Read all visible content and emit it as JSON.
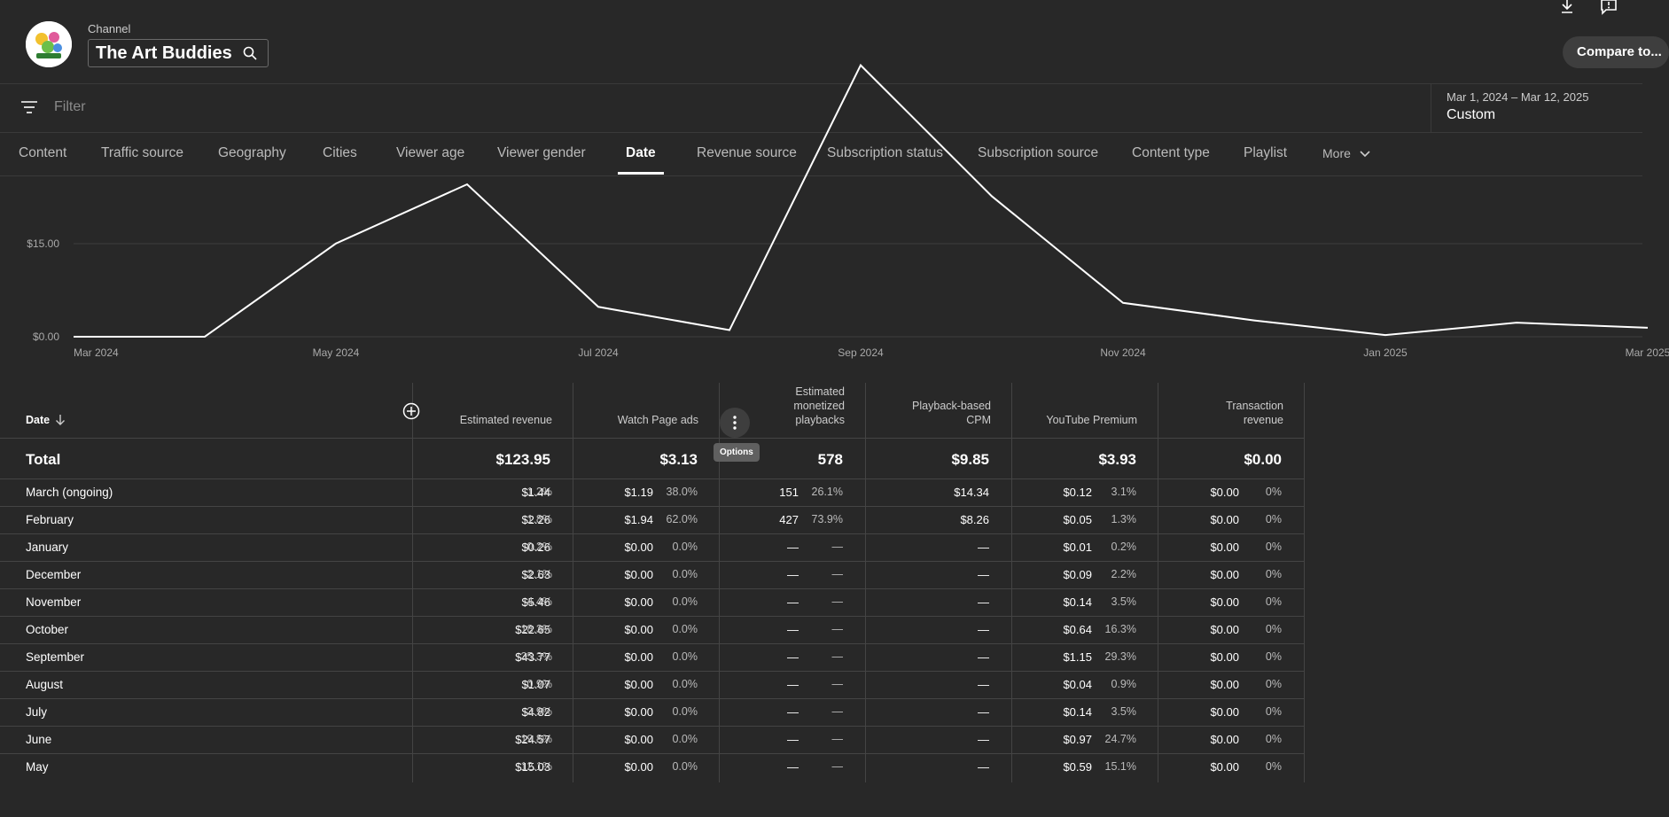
{
  "header": {
    "channel_label": "Channel",
    "channel_name": "The Art Buddies",
    "compare_button": "Compare to..."
  },
  "filter": {
    "placeholder": "Filter"
  },
  "date_range": {
    "label": "Mar 1, 2024 – Mar 12, 2025",
    "value": "Custom"
  },
  "tabs": [
    {
      "label": "Content"
    },
    {
      "label": "Traffic source"
    },
    {
      "label": "Geography"
    },
    {
      "label": "Cities"
    },
    {
      "label": "Viewer age"
    },
    {
      "label": "Viewer gender"
    },
    {
      "label": "Date"
    },
    {
      "label": "Revenue source"
    },
    {
      "label": "Subscription status"
    },
    {
      "label": "Subscription source"
    },
    {
      "label": "Content type"
    },
    {
      "label": "Playlist"
    },
    {
      "label": "More"
    }
  ],
  "chart_data": {
    "type": "line",
    "x": [
      "Mar 2024",
      "Apr 2024",
      "May 2024",
      "Jun 2024",
      "Jul 2024",
      "Aug 2024",
      "Sep 2024",
      "Oct 2024",
      "Nov 2024",
      "Dec 2024",
      "Jan 2025",
      "Feb 2025",
      "Mar 2025"
    ],
    "values": [
      0.0,
      0.0,
      15.03,
      24.57,
      4.82,
      1.07,
      43.77,
      22.65,
      5.46,
      2.63,
      0.26,
      2.26,
      1.44
    ],
    "x_tick_labels": [
      "Mar 2024",
      "May 2024",
      "Jul 2024",
      "Sep 2024",
      "Nov 2024",
      "Jan 2025",
      "Mar 2025"
    ],
    "y_tick_labels": [
      "$15.00",
      "$0.00"
    ],
    "y_ticks": [
      15.0,
      0.0
    ],
    "grid": true
  },
  "table": {
    "date_header": "Date",
    "columns": [
      {
        "label": "Estimated revenue"
      },
      {
        "label": "Watch Page ads"
      },
      {
        "label": "Estimated monetized playbacks"
      },
      {
        "label": "Playback-based CPM"
      },
      {
        "label": "YouTube Premium"
      },
      {
        "label": "Transaction revenue"
      }
    ],
    "total": {
      "label": "Total",
      "values": [
        "$123.95",
        "$3.13",
        "578",
        "$9.85",
        "$3.93",
        "$0.00"
      ]
    },
    "rows": [
      {
        "label": "March (ongoing)",
        "cells": [
          [
            "$1.44",
            "1.2%"
          ],
          [
            "$1.19",
            "38.0%"
          ],
          [
            "151",
            "26.1%"
          ],
          [
            "$14.34",
            ""
          ],
          [
            "$0.12",
            "3.1%"
          ],
          [
            "$0.00",
            "0%"
          ]
        ]
      },
      {
        "label": "February",
        "cells": [
          [
            "$2.26",
            "1.8%"
          ],
          [
            "$1.94",
            "62.0%"
          ],
          [
            "427",
            "73.9%"
          ],
          [
            "$8.26",
            ""
          ],
          [
            "$0.05",
            "1.3%"
          ],
          [
            "$0.00",
            "0%"
          ]
        ]
      },
      {
        "label": "January",
        "cells": [
          [
            "$0.26",
            "0.2%"
          ],
          [
            "$0.00",
            "0.0%"
          ],
          [
            "—",
            "—"
          ],
          [
            "—",
            ""
          ],
          [
            "$0.01",
            "0.2%"
          ],
          [
            "$0.00",
            "0%"
          ]
        ]
      },
      {
        "label": "December",
        "cells": [
          [
            "$2.63",
            "2.1%"
          ],
          [
            "$0.00",
            "0.0%"
          ],
          [
            "—",
            "—"
          ],
          [
            "—",
            ""
          ],
          [
            "$0.09",
            "2.2%"
          ],
          [
            "$0.00",
            "0%"
          ]
        ]
      },
      {
        "label": "November",
        "cells": [
          [
            "$5.46",
            "4.4%"
          ],
          [
            "$0.00",
            "0.0%"
          ],
          [
            "—",
            "—"
          ],
          [
            "—",
            ""
          ],
          [
            "$0.14",
            "3.5%"
          ],
          [
            "$0.00",
            "0%"
          ]
        ]
      },
      {
        "label": "October",
        "cells": [
          [
            "$22.65",
            "18.3%"
          ],
          [
            "$0.00",
            "0.0%"
          ],
          [
            "—",
            "—"
          ],
          [
            "—",
            ""
          ],
          [
            "$0.64",
            "16.3%"
          ],
          [
            "$0.00",
            "0%"
          ]
        ]
      },
      {
        "label": "September",
        "cells": [
          [
            "$43.77",
            "35.3%"
          ],
          [
            "$0.00",
            "0.0%"
          ],
          [
            "—",
            "—"
          ],
          [
            "—",
            ""
          ],
          [
            "$1.15",
            "29.3%"
          ],
          [
            "$0.00",
            "0%"
          ]
        ]
      },
      {
        "label": "August",
        "cells": [
          [
            "$1.07",
            "0.9%"
          ],
          [
            "$0.00",
            "0.0%"
          ],
          [
            "—",
            "—"
          ],
          [
            "—",
            ""
          ],
          [
            "$0.04",
            "0.9%"
          ],
          [
            "$0.00",
            "0%"
          ]
        ]
      },
      {
        "label": "July",
        "cells": [
          [
            "$4.82",
            "3.9%"
          ],
          [
            "$0.00",
            "0.0%"
          ],
          [
            "—",
            "—"
          ],
          [
            "—",
            ""
          ],
          [
            "$0.14",
            "3.5%"
          ],
          [
            "$0.00",
            "0%"
          ]
        ]
      },
      {
        "label": "June",
        "cells": [
          [
            "$24.57",
            "19.8%"
          ],
          [
            "$0.00",
            "0.0%"
          ],
          [
            "—",
            "—"
          ],
          [
            "—",
            ""
          ],
          [
            "$0.97",
            "24.7%"
          ],
          [
            "$0.00",
            "0%"
          ]
        ]
      },
      {
        "label": "May",
        "cells": [
          [
            "$15.03",
            "12.1%"
          ],
          [
            "$0.00",
            "0.0%"
          ],
          [
            "—",
            "—"
          ],
          [
            "—",
            ""
          ],
          [
            "$0.59",
            "15.1%"
          ],
          [
            "$0.00",
            "0%"
          ]
        ]
      }
    ]
  },
  "options_tooltip": "Options",
  "icons": [
    "download-icon",
    "feedback-icon",
    "search-icon",
    "filter-icon",
    "chevron-down-icon",
    "sort-down-icon",
    "add-column-icon",
    "more-vert-icon"
  ]
}
